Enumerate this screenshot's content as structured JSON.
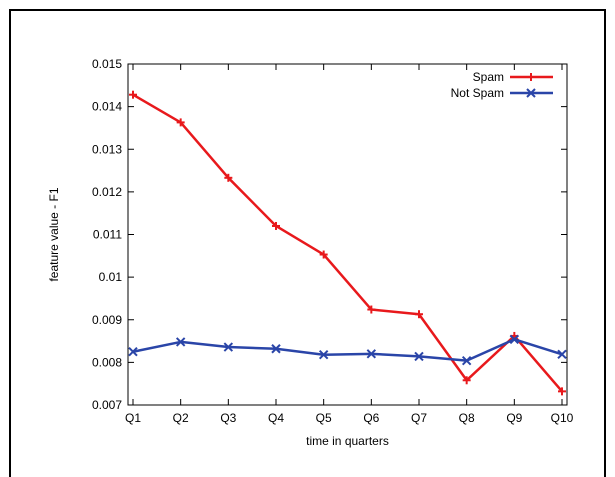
{
  "chart_data": {
    "type": "line",
    "categories": [
      "Q1",
      "Q2",
      "Q3",
      "Q4",
      "Q5",
      "Q6",
      "Q7",
      "Q8",
      "Q9",
      "Q10"
    ],
    "series": [
      {
        "name": "Spam",
        "color": "#e8191c",
        "marker": "plus",
        "values": [
          0.01428,
          0.01363,
          0.01233,
          0.0112,
          0.01053,
          0.00924,
          0.00913,
          0.00758,
          0.00862,
          0.00732
        ]
      },
      {
        "name": "Not Spam",
        "color": "#2a45a8",
        "marker": "x",
        "values": [
          0.00825,
          0.00848,
          0.00836,
          0.00832,
          0.00818,
          0.0082,
          0.00814,
          0.00804,
          0.00854,
          0.00819
        ]
      }
    ],
    "title": "",
    "xlabel": "time in quarters",
    "ylabel": "feature value - F1",
    "ylim": [
      0.007,
      0.015
    ],
    "yticks": [
      "0.007",
      "0.008",
      "0.009",
      "0.01",
      "0.011",
      "0.012",
      "0.013",
      "0.014",
      "0.015"
    ],
    "grid": false,
    "legend": "top-right"
  }
}
